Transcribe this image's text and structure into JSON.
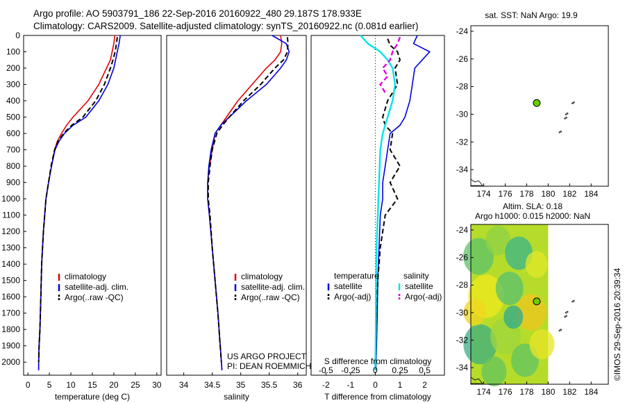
{
  "header": {
    "line1": "Argo profile: AO 5903791_186 22-Sep-2016 20160922_480 29.187S 178.933E",
    "line2": "Climatology: CARS2009. Satellite-adjusted climatology: synTS_20160922.nc (0.081d earlier)"
  },
  "colors": {
    "climatology": "#e00000",
    "satellite": "#0000dd",
    "argo": "#000000",
    "satellite_salinity": "#00e5e5",
    "argo_salinity_adj": "#e000e0",
    "map_dot": "#66cc00"
  },
  "credits": {
    "project": "US ARGO PROJECT",
    "pi": "PI: DEAN ROEMMICH"
  },
  "watermark": "©IMOS 29-Sep-2016 20:39:34",
  "chart_data": [
    {
      "id": "temperature",
      "type": "line",
      "xlabel": "temperature (deg C)",
      "xlim": [
        -1,
        31
      ],
      "xticks": [
        0,
        5,
        10,
        15,
        20,
        25,
        30
      ],
      "ylim": [
        2080,
        0
      ],
      "yticks": [
        0,
        100,
        200,
        300,
        400,
        500,
        600,
        700,
        800,
        900,
        1000,
        1100,
        1200,
        1300,
        1400,
        1500,
        1600,
        1700,
        1800,
        1900,
        2000
      ],
      "legend": [
        "climatology",
        "satellite-adj. clim.",
        "Argo(..raw -QC)"
      ],
      "series": [
        {
          "name": "climatology",
          "color": "#e00000",
          "style": "solid",
          "x": [
            20.2,
            20,
            19.6,
            19.2,
            18.3,
            16.5,
            14.0,
            10.5,
            9.0,
            7.8,
            6.8,
            6.2,
            5.5,
            4.8,
            4.2,
            3.6,
            3.2,
            3.0,
            2.8,
            2.6,
            2.5,
            2.5
          ],
          "y": [
            0,
            50,
            100,
            150,
            200,
            300,
            400,
            500,
            550,
            600,
            650,
            700,
            800,
            900,
            1000,
            1200,
            1400,
            1600,
            1800,
            1900,
            2000,
            2050
          ]
        },
        {
          "name": "satellite-adj. clim.",
          "color": "#0000dd",
          "style": "solid",
          "x": [
            21.5,
            21.2,
            20.8,
            20.4,
            20.0,
            18.6,
            16.5,
            13.5,
            10.5,
            8.5,
            7.2,
            6.3,
            5.5,
            4.8,
            4.2,
            3.6,
            3.2,
            3.0,
            2.8,
            2.6,
            2.5,
            2.5
          ],
          "y": [
            0,
            50,
            100,
            150,
            200,
            300,
            400,
            500,
            550,
            600,
            650,
            700,
            800,
            900,
            1000,
            1200,
            1400,
            1600,
            1800,
            1900,
            2000,
            2050
          ]
        },
        {
          "name": "Argo(..raw -QC)",
          "color": "#000000",
          "style": "dashed",
          "x": [
            20.8,
            20.6,
            20.3,
            19.8,
            19.2,
            17.8,
            15.8,
            12.8,
            10.2,
            8.3,
            7.0,
            6.2,
            5.4,
            4.8,
            4.2,
            3.6,
            3.2,
            3.0,
            2.8,
            2.6,
            2.5
          ],
          "y": [
            10,
            50,
            100,
            150,
            200,
            300,
            400,
            500,
            550,
            600,
            650,
            700,
            800,
            900,
            1000,
            1200,
            1400,
            1600,
            1800,
            1900,
            2000
          ]
        }
      ]
    },
    {
      "id": "salinity",
      "type": "line",
      "xlabel": "salinity",
      "xlim": [
        33.7,
        36.15
      ],
      "xticks": [
        34,
        34.5,
        35,
        35.5,
        36
      ],
      "ylim": [
        2080,
        0
      ],
      "legend": [
        "climatology",
        "satellite-adj. clim.",
        "Argo(..raw -QC)"
      ],
      "series": [
        {
          "name": "climatology",
          "color": "#e00000",
          "style": "solid",
          "x": [
            35.7,
            35.72,
            35.7,
            35.6,
            35.45,
            35.2,
            34.95,
            34.75,
            34.65,
            34.55,
            34.5,
            34.45,
            34.42,
            34.42,
            34.45,
            34.5,
            34.55,
            34.6,
            34.64,
            34.66,
            34.67
          ],
          "y": [
            0,
            50,
            100,
            150,
            200,
            300,
            400,
            500,
            550,
            600,
            700,
            800,
            900,
            1000,
            1100,
            1300,
            1500,
            1700,
            1900,
            2000,
            2050
          ]
        },
        {
          "name": "satellite-adj. clim.",
          "color": "#0000dd",
          "style": "solid",
          "x": [
            35.55,
            35.8,
            35.85,
            35.8,
            35.7,
            35.45,
            35.1,
            34.8,
            34.65,
            34.55,
            34.48,
            34.44,
            34.42,
            34.42,
            34.45,
            34.5,
            34.55,
            34.6,
            34.64,
            34.66,
            34.67
          ],
          "y": [
            0,
            50,
            100,
            150,
            200,
            300,
            400,
            500,
            550,
            600,
            700,
            800,
            900,
            1000,
            1100,
            1300,
            1500,
            1700,
            1900,
            2000,
            2050
          ]
        },
        {
          "name": "Argo(..raw -QC)",
          "color": "#000000",
          "style": "dashed",
          "x": [
            35.82,
            35.83,
            35.82,
            35.75,
            35.6,
            35.35,
            35.05,
            34.8,
            34.68,
            34.58,
            34.5,
            34.46,
            34.43,
            34.43,
            34.46,
            34.5,
            34.55,
            34.6,
            34.64,
            34.66
          ],
          "y": [
            10,
            50,
            100,
            150,
            200,
            300,
            400,
            500,
            550,
            600,
            700,
            800,
            900,
            1000,
            1100,
            1300,
            1500,
            1700,
            1900,
            2000
          ]
        }
      ]
    },
    {
      "id": "difference",
      "type": "line",
      "xlabel": "T difference from climatology",
      "xlabel_top": "S difference from climatology",
      "xlim": [
        -2.6,
        2.8
      ],
      "xticks": [
        -2,
        -1,
        0,
        1,
        2
      ],
      "sticks": [
        -0.5,
        -0.25,
        0,
        0.25,
        0.5
      ],
      "stick_labels": [
        "-0.5",
        "-0.25",
        "0",
        "0.25",
        "0.5"
      ],
      "ylim": [
        2080,
        0
      ],
      "legend_headers": [
        "temperature",
        "salinity"
      ],
      "legend": [
        "satellite",
        "Argo(-adj)",
        "satellite",
        "Argo(-adj)"
      ],
      "series": [
        {
          "name": "temperature satellite",
          "color": "#0000dd",
          "style": "solid",
          "x": [
            1.7,
            1.55,
            2.2,
            1.9,
            1.6,
            1.5,
            1.4,
            1.2,
            1.0,
            0.6,
            0.5,
            0.4,
            0.3,
            0.3,
            0.2,
            0.15,
            0.1,
            0.08,
            0.05,
            0.03,
            0.02
          ],
          "y": [
            0,
            50,
            100,
            150,
            200,
            300,
            400,
            500,
            550,
            600,
            700,
            800,
            900,
            1000,
            1100,
            1300,
            1500,
            1700,
            1900,
            2000,
            2050
          ]
        },
        {
          "name": "temperature Argo(-adj)",
          "color": "#000000",
          "style": "dashed",
          "x": [
            0.5,
            0.6,
            0.9,
            1.0,
            0.8,
            0.9,
            0.5,
            0.3,
            0.4,
            0.7,
            0.6,
            1.0,
            0.6,
            0.9,
            0.4,
            0.2,
            0.1,
            0.05,
            0.03,
            0.02
          ],
          "y": [
            20,
            60,
            100,
            150,
            200,
            300,
            400,
            500,
            550,
            600,
            700,
            800,
            900,
            1000,
            1100,
            1300,
            1500,
            1700,
            1900,
            2000
          ]
        },
        {
          "name": "salinity satellite",
          "color": "#00e5e5",
          "style": "solid",
          "x": [
            -0.6,
            -0.3,
            0.2,
            0.5,
            0.7,
            0.8,
            0.7,
            0.5,
            0.3,
            0.2,
            0.15,
            0.1,
            0.05,
            0.03,
            0.02,
            0.0
          ],
          "y": [
            0,
            50,
            100,
            150,
            200,
            300,
            400,
            500,
            600,
            700,
            900,
            1100,
            1300,
            1500,
            1800,
            2050
          ]
        },
        {
          "name": "salinity Argo(-adj)",
          "color": "#e000e0",
          "style": "dashed",
          "x": [
            1.0,
            0.9,
            0.7,
            0.6,
            0.3,
            0.5,
            0.2,
            0.4
          ],
          "y": [
            10,
            50,
            100,
            150,
            200,
            250,
            300,
            350
          ]
        }
      ]
    },
    {
      "id": "sst_map",
      "type": "scatter",
      "title": "sat. SST: NaN Argo: 19.9",
      "xlim": [
        172.8,
        185.6
      ],
      "xticks": [
        174,
        176,
        178,
        180,
        182,
        184
      ],
      "ylim": [
        -35.2,
        -23.6
      ],
      "yticks": [
        -24,
        -26,
        -28,
        -30,
        -32,
        -34
      ],
      "points": [
        {
          "lon": 178.933,
          "lat": -29.187
        }
      ]
    },
    {
      "id": "sla_map",
      "type": "heatmap",
      "title_line1": "Altim. SLA: 0.18",
      "title_line2": "Argo h1000: 0.015 h2000: NaN",
      "xlim": [
        172.8,
        185.6
      ],
      "xticks": [
        174,
        176,
        178,
        180,
        182,
        184
      ],
      "ylim": [
        -35.2,
        -23.6
      ],
      "yticks": [
        -24,
        -26,
        -28,
        -30,
        -32,
        -34
      ],
      "points": [
        {
          "lon": 178.933,
          "lat": -29.187
        }
      ]
    }
  ]
}
